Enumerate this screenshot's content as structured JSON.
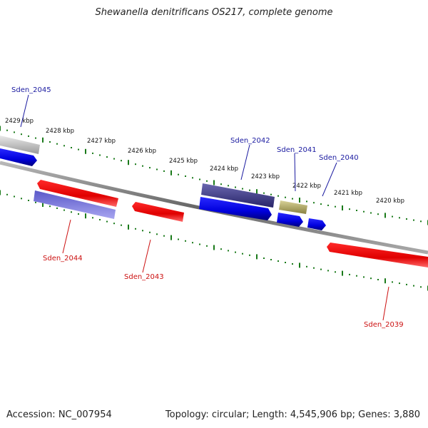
{
  "title": "Shewanella denitrificans OS217, complete genome",
  "footer": {
    "accession": "Accession: NC_007954",
    "summary": "Topology: circular; Length: 4,545,906 bp; Genes: 3,880"
  },
  "kbp_labels": [
    "2429 kbp",
    "2428 kbp",
    "2427 kbp",
    "2426 kbp",
    "2425 kbp",
    "2424 kbp",
    "2423 kbp",
    "2422 kbp",
    "2421 kbp",
    "2420 kbp"
  ],
  "genes": {
    "top": [
      "Sden_2045",
      "Sden_2042",
      "Sden_2041",
      "Sden_2040"
    ],
    "bottom": [
      "Sden_2044",
      "Sden_2043",
      "Sden_2039"
    ]
  },
  "colors": {
    "forward_strand": "#1111ee",
    "reverse_strand": "#ee1111",
    "rna": "#b0aa60",
    "pseudo": "#c0c0c0",
    "backbone": "#888888",
    "tick": "#1a7a1a"
  }
}
